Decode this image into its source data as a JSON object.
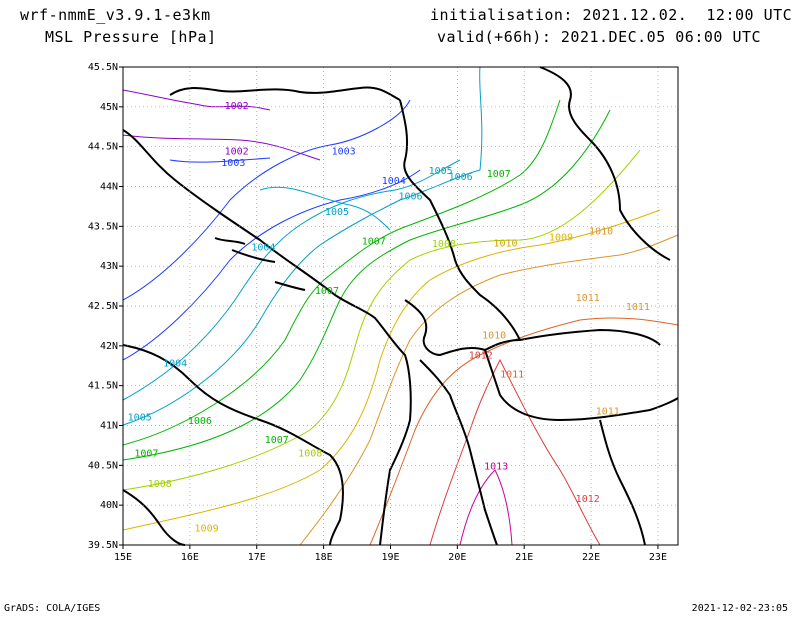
{
  "header": {
    "model": "wrf-nmmE_v3.9.1-e3km",
    "field": "MSL Pressure [hPa]",
    "init": "initialisation: 2021.12.02.  12:00 UTC",
    "valid": "valid(+66h): 2021.DEC.05 06:00 UTC"
  },
  "footer": {
    "credit": "GrADS: COLA/IGES",
    "timestamp": "2021-12-02-23:05"
  },
  "map": {
    "lon_range": [
      15,
      23.3
    ],
    "lat_range": [
      39.5,
      45.5
    ],
    "lon_ticks": [
      "15E",
      "16E",
      "17E",
      "18E",
      "19E",
      "20E",
      "21E",
      "22E",
      "23E"
    ],
    "lat_ticks": [
      "45.5N",
      "45N",
      "44.5N",
      "44N",
      "43.5N",
      "43N",
      "42.5N",
      "42N",
      "41.5N",
      "41N",
      "40.5N",
      "40N",
      "39.5N"
    ],
    "grid": "dotted",
    "contour_labels": [
      {
        "text": "1002",
        "lon": 16.7,
        "lat": 45.02,
        "color": "#8c00c8"
      },
      {
        "text": "1002",
        "lon": 16.7,
        "lat": 44.45,
        "color": "#8c00c8"
      },
      {
        "text": "1003",
        "lon": 16.65,
        "lat": 44.31,
        "color": "#1e3cff"
      },
      {
        "text": "1003",
        "lon": 18.3,
        "lat": 44.45,
        "color": "#1e3cff"
      },
      {
        "text": "1004",
        "lon": 19.05,
        "lat": 44.08,
        "color": "#1e3cff"
      },
      {
        "text": "1005",
        "lon": 19.75,
        "lat": 44.21,
        "color": "#00a0c8"
      },
      {
        "text": "1006",
        "lon": 20.05,
        "lat": 44.13,
        "color": "#00a0c8"
      },
      {
        "text": "1007",
        "lon": 20.62,
        "lat": 44.17,
        "color": "#00b400"
      },
      {
        "text": "1005",
        "lon": 18.2,
        "lat": 43.69,
        "color": "#00a0c8"
      },
      {
        "text": "1004",
        "lon": 17.1,
        "lat": 43.25,
        "color": "#00a0c8"
      },
      {
        "text": "1006",
        "lon": 19.3,
        "lat": 43.89,
        "color": "#00a0c8"
      },
      {
        "text": "1007",
        "lon": 18.75,
        "lat": 43.32,
        "color": "#00b400"
      },
      {
        "text": "1008",
        "lon": 19.8,
        "lat": 43.29,
        "color": "#a0d200"
      },
      {
        "text": "1009",
        "lon": 21.55,
        "lat": 43.37,
        "color": "#dcb400"
      },
      {
        "text": "1010",
        "lon": 20.72,
        "lat": 43.3,
        "color": "#d2a000"
      },
      {
        "text": "1010",
        "lon": 22.15,
        "lat": 43.45,
        "color": "#dc9628"
      },
      {
        "text": "1011",
        "lon": 21.95,
        "lat": 42.61,
        "color": "#dc9628"
      },
      {
        "text": "1011",
        "lon": 22.7,
        "lat": 42.5,
        "color": "#dc9628"
      },
      {
        "text": "1007",
        "lon": 18.05,
        "lat": 42.7,
        "color": "#00b400"
      },
      {
        "text": "1004",
        "lon": 15.78,
        "lat": 41.79,
        "color": "#00a0c8"
      },
      {
        "text": "1005",
        "lon": 15.25,
        "lat": 41.11,
        "color": "#00a0c8"
      },
      {
        "text": "1006",
        "lon": 16.15,
        "lat": 41.07,
        "color": "#00b400"
      },
      {
        "text": "1007",
        "lon": 15.35,
        "lat": 40.66,
        "color": "#00b400"
      },
      {
        "text": "1007",
        "lon": 17.3,
        "lat": 40.83,
        "color": "#00b400"
      },
      {
        "text": "1008",
        "lon": 17.8,
        "lat": 40.66,
        "color": "#a0d200"
      },
      {
        "text": "1008",
        "lon": 15.55,
        "lat": 40.28,
        "color": "#a0d200"
      },
      {
        "text": "1009",
        "lon": 16.25,
        "lat": 39.72,
        "color": "#dcb400"
      },
      {
        "text": "1010",
        "lon": 20.55,
        "lat": 42.14,
        "color": "#dc9628"
      },
      {
        "text": "1011",
        "lon": 20.82,
        "lat": 41.65,
        "color": "#dc6428"
      },
      {
        "text": "1012",
        "lon": 20.35,
        "lat": 41.89,
        "color": "#dc3c3c"
      },
      {
        "text": "1011",
        "lon": 22.25,
        "lat": 41.19,
        "color": "#dc9628"
      },
      {
        "text": "1013",
        "lon": 20.58,
        "lat": 40.5,
        "color": "#c800a0"
      },
      {
        "text": "1012",
        "lon": 21.95,
        "lat": 40.09,
        "color": "#dc3c3c"
      }
    ]
  }
}
